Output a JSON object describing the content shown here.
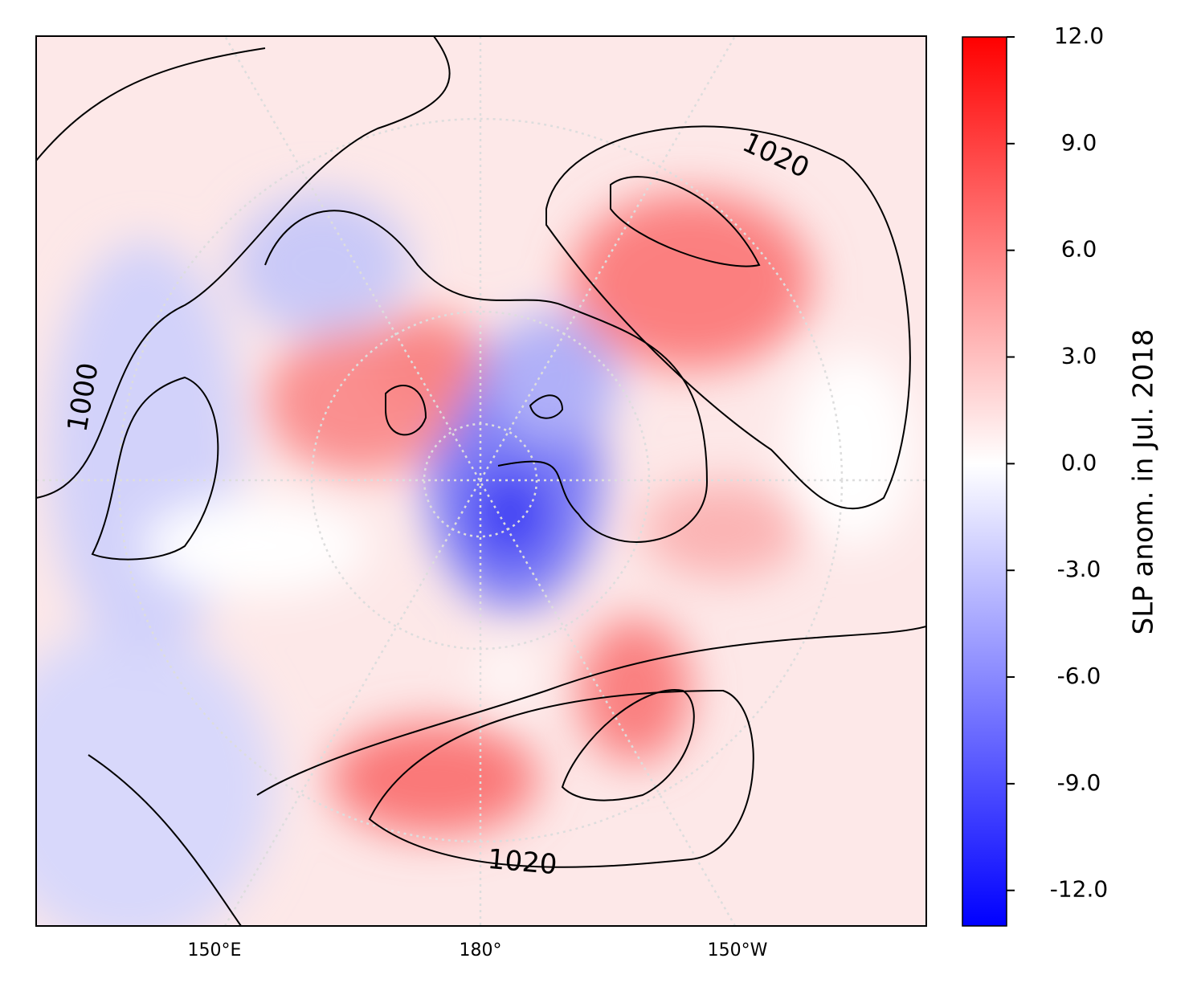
{
  "map": {
    "type": "map",
    "xticks": [
      "150°E",
      "180°",
      "150°W"
    ],
    "contour_labels": [
      "1020",
      "1000",
      "1020"
    ]
  },
  "colorbar": {
    "label": "SLP anom. in Jul. 2018",
    "lim": [
      -13,
      12
    ],
    "colors": [
      "#0000ff",
      "#ffffff",
      "#ff0000"
    ],
    "ticks": [
      {
        "value": 12,
        "label": "12.0"
      },
      {
        "value": 9,
        "label": "9.0"
      },
      {
        "value": 6,
        "label": "6.0"
      },
      {
        "value": 3,
        "label": "3.0"
      },
      {
        "value": 0,
        "label": "0.0"
      },
      {
        "value": -3,
        "label": "-3.0"
      },
      {
        "value": -6,
        "label": "-6.0"
      },
      {
        "value": -9,
        "label": "-9.0"
      },
      {
        "value": -12,
        "label": "-12.0"
      }
    ]
  }
}
